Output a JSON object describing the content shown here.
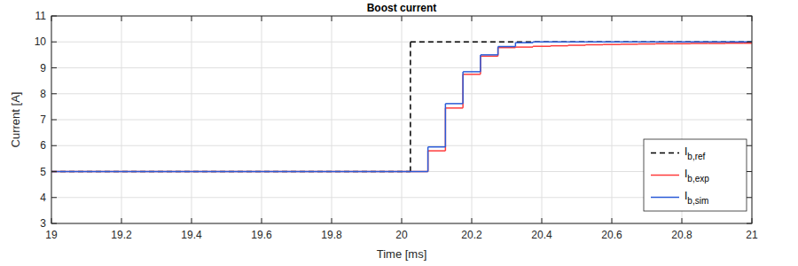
{
  "chart_data": {
    "type": "stairs",
    "title": "Boost current",
    "x_label": "Time [ms]",
    "y_label": "Current [A]",
    "xlim": [
      19,
      21
    ],
    "xticks": [
      19,
      19.2,
      19.4,
      19.6,
      19.8,
      20,
      20.2,
      20.4,
      20.6,
      20.8,
      21
    ],
    "ylim": [
      3,
      11
    ],
    "yticks": [
      3,
      4,
      5,
      6,
      7,
      8,
      9,
      10,
      11
    ],
    "grid": true,
    "legend": "southeast",
    "series": [
      {
        "name": "Ib,ref",
        "color": "#000000",
        "line_style": "dashed",
        "x": [
          19,
          20.025
        ],
        "values": [
          5,
          10
        ]
      },
      {
        "name": "Ib,exp",
        "color": "#ff3b3b",
        "line_style": "solid",
        "x": [
          19,
          20.075,
          20.125,
          20.175,
          20.225,
          20.275,
          20.325,
          20.375,
          20.425,
          20.475,
          20.525,
          20.575,
          20.625,
          20.675,
          20.725,
          20.775,
          20.825,
          20.875,
          20.925,
          20.975
        ],
        "values": [
          5,
          5.8,
          7.45,
          8.75,
          9.45,
          9.78,
          9.8,
          9.83,
          9.85,
          9.87,
          9.89,
          9.9,
          9.91,
          9.92,
          9.93,
          9.93,
          9.94,
          9.94,
          9.95,
          9.95
        ]
      },
      {
        "name": "Ib,sim",
        "color": "#2a5bd7",
        "line_style": "solid",
        "x": [
          19,
          20.075,
          20.125,
          20.175,
          20.225,
          20.275,
          20.325,
          20.375,
          20.425,
          20.475,
          20.525,
          20.575,
          20.625,
          20.675,
          20.725,
          20.775,
          20.825,
          20.875,
          20.925,
          20.975
        ],
        "values": [
          5,
          5.95,
          7.62,
          8.85,
          9.5,
          9.82,
          9.97,
          10,
          10,
          10,
          10,
          10,
          10,
          10,
          10,
          10,
          10,
          10,
          10,
          10
        ]
      }
    ]
  }
}
